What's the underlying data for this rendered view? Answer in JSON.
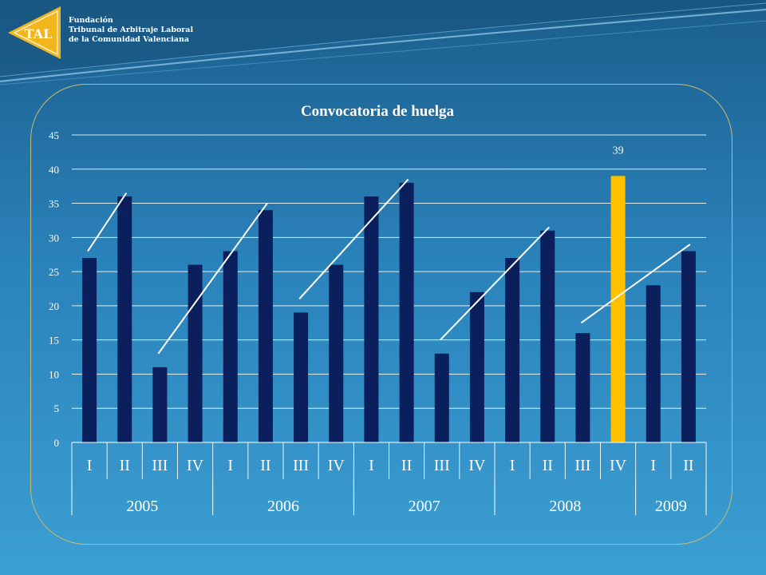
{
  "org": {
    "logo_text": "TAL",
    "line1": "Fundación",
    "line2": "Tribunal de Arbitraje Laboral",
    "line3": "de la Comunidad Valenciana"
  },
  "chart_data": {
    "type": "bar",
    "title": "Convocatoria de huelga",
    "ylim": [
      0,
      45
    ],
    "yticks": [
      0,
      5,
      10,
      15,
      20,
      25,
      30,
      35,
      40,
      45
    ],
    "categories": [
      "I",
      "II",
      "III",
      "IV",
      "I",
      "II",
      "III",
      "IV",
      "I",
      "II",
      "III",
      "IV",
      "I",
      "II",
      "III",
      "IV",
      "I",
      "II"
    ],
    "groups": [
      {
        "label": "2005",
        "count": 4
      },
      {
        "label": "2006",
        "count": 4
      },
      {
        "label": "2007",
        "count": 4
      },
      {
        "label": "2008",
        "count": 4
      },
      {
        "label": "2009",
        "count": 2
      }
    ],
    "values": [
      27,
      36,
      11,
      26,
      28,
      34,
      19,
      26,
      36,
      38,
      13,
      22,
      27,
      31,
      16,
      39,
      23,
      28
    ],
    "highlight_index": 15,
    "data_labels": [
      {
        "index": 15,
        "text": "39"
      }
    ],
    "colors": {
      "bar": "#0a1f5c",
      "highlight": "#ffc000",
      "grid": "#ffffff",
      "trend": "#ffffff"
    },
    "trend_lines": [
      {
        "from": {
          "index": 0,
          "value": 28
        },
        "to": {
          "index": 1,
          "value": 36.5
        }
      },
      {
        "from": {
          "index": 2,
          "value": 13
        },
        "to": {
          "index": 5,
          "value": 35
        }
      },
      {
        "from": {
          "index": 6,
          "value": 21
        },
        "to": {
          "index": 9,
          "value": 38.5
        }
      },
      {
        "from": {
          "index": 10,
          "value": 15
        },
        "to": {
          "index": 13,
          "value": 31.5
        }
      },
      {
        "from": {
          "index": 14,
          "value": 17.5
        },
        "to": {
          "index": 17,
          "value": 29
        }
      }
    ]
  }
}
